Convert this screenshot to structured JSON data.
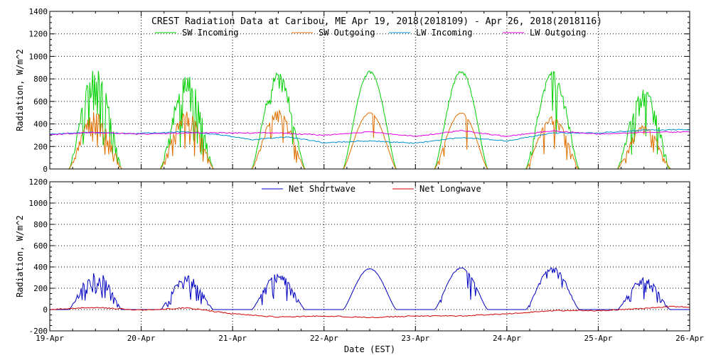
{
  "chart_data": [
    {
      "type": "line",
      "title": "CREST Radiation Data at Caribou, ME   Apr 19, 2018(2018109) - Apr 26, 2018(2018116)",
      "xlabel": "",
      "ylabel": "Radiation, W/m^2",
      "xlim": [
        0,
        7
      ],
      "ylim": [
        0,
        1400
      ],
      "yticks": [
        0,
        200,
        400,
        600,
        800,
        1000,
        1200,
        1400
      ],
      "grid": true,
      "legend_position": "top",
      "day_labels": [
        "19-Apr",
        "20-Apr",
        "21-Apr",
        "22-Apr",
        "23-Apr",
        "24-Apr",
        "25-Apr",
        "26-Apr"
      ],
      "sunrise_day_fraction": 0.21,
      "sunset_day_fraction": 0.79,
      "series": [
        {
          "name": "SW Incoming",
          "color": "#00d000",
          "kind": "shortwave",
          "daily_peaks": [
            890,
            850,
            860,
            870,
            875,
            870,
            710
          ],
          "noise": [
            0.55,
            0.5,
            0.3,
            0.03,
            0.05,
            0.25,
            0.4
          ]
        },
        {
          "name": "SW Outgoing",
          "color": "#e07000",
          "kind": "shortwave",
          "daily_peaks": [
            510,
            510,
            520,
            500,
            500,
            470,
            390
          ],
          "noise": [
            0.55,
            0.5,
            0.3,
            0.03,
            0.05,
            0.25,
            0.4
          ]
        },
        {
          "name": "LW Incoming",
          "color": "#0090d0",
          "kind": "profile",
          "points": [
            [
              0,
              310
            ],
            [
              0.4,
              325
            ],
            [
              0.9,
              315
            ],
            [
              1.5,
              330
            ],
            [
              1.9,
              300
            ],
            [
              2.2,
              260
            ],
            [
              2.6,
              285
            ],
            [
              3.0,
              235
            ],
            [
              3.5,
              250
            ],
            [
              4.0,
              230
            ],
            [
              4.5,
              280
            ],
            [
              5.0,
              250
            ],
            [
              5.5,
              320
            ],
            [
              6.0,
              320
            ],
            [
              6.5,
              345
            ],
            [
              7.0,
              350
            ]
          ]
        },
        {
          "name": "LW Outgoing",
          "color": "#e000e0",
          "kind": "profile",
          "points": [
            [
              0,
              305
            ],
            [
              0.5,
              325
            ],
            [
              1.0,
              310
            ],
            [
              1.5,
              320
            ],
            [
              2.0,
              320
            ],
            [
              2.5,
              320
            ],
            [
              3.0,
              300
            ],
            [
              3.5,
              330
            ],
            [
              4.0,
              290
            ],
            [
              4.5,
              340
            ],
            [
              5.0,
              290
            ],
            [
              5.5,
              340
            ],
            [
              6.0,
              310
            ],
            [
              6.5,
              325
            ],
            [
              7.0,
              330
            ]
          ]
        }
      ]
    },
    {
      "type": "line",
      "title": "",
      "xlabel": "Date (EST)",
      "ylabel": "Radiation, W/m^2",
      "xlim": [
        0,
        7
      ],
      "ylim": [
        -200,
        1200
      ],
      "yticks": [
        -200,
        0,
        200,
        400,
        600,
        800,
        1000,
        1200
      ],
      "grid": true,
      "legend_position": "top",
      "day_labels": [
        "19-Apr",
        "20-Apr",
        "21-Apr",
        "22-Apr",
        "23-Apr",
        "24-Apr",
        "25-Apr",
        "26-Apr"
      ],
      "series": [
        {
          "name": "Net Shortwave",
          "color": "#0000c0",
          "kind": "shortwave",
          "daily_peaks": [
            370,
            320,
            340,
            385,
            395,
            400,
            300
          ],
          "noise": [
            0.55,
            0.5,
            0.3,
            0.03,
            0.05,
            0.25,
            0.4
          ]
        },
        {
          "name": "Net Longwave",
          "color": "#d00000",
          "kind": "profile",
          "points": [
            [
              0,
              0
            ],
            [
              0.5,
              20
            ],
            [
              1.0,
              -5
            ],
            [
              1.5,
              15
            ],
            [
              2.0,
              -40
            ],
            [
              2.5,
              -70
            ],
            [
              3.0,
              -60
            ],
            [
              3.5,
              -75
            ],
            [
              4.0,
              -60
            ],
            [
              4.5,
              -60
            ],
            [
              5.0,
              -40
            ],
            [
              5.5,
              -10
            ],
            [
              6.0,
              -10
            ],
            [
              6.5,
              10
            ],
            [
              6.8,
              30
            ],
            [
              7.0,
              20
            ]
          ]
        }
      ]
    }
  ]
}
